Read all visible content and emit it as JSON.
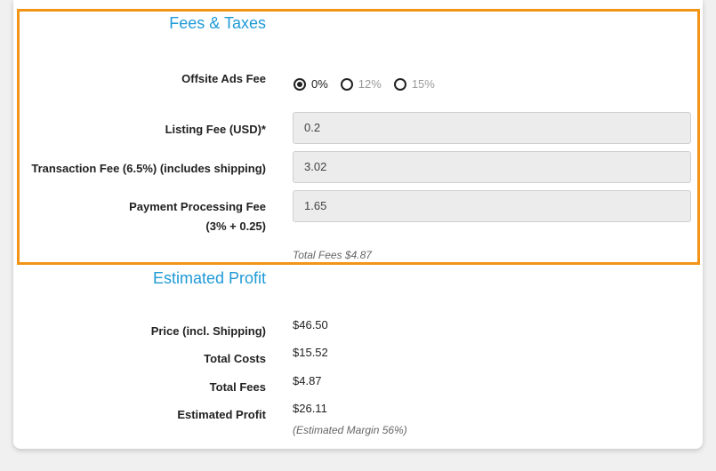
{
  "fees_section": {
    "title": "Fees & Taxes",
    "offsite_ads": {
      "label": "Offsite Ads Fee",
      "options": [
        {
          "label": "0%",
          "selected": true
        },
        {
          "label": "12%",
          "selected": false
        },
        {
          "label": "15%",
          "selected": false
        }
      ]
    },
    "listing_fee": {
      "label": "Listing Fee (USD)*",
      "value": "0.2"
    },
    "transaction_fee": {
      "label": "Transaction Fee (6.5%) (includes shipping)",
      "value": "3.02"
    },
    "payment_processing_fee": {
      "label_line1": "Payment Processing Fee",
      "label_line2": "(3% + 0.25)",
      "value": "1.65"
    },
    "total_fees_note": "Total Fees $4.87"
  },
  "profit_section": {
    "title": "Estimated Profit",
    "rows": [
      {
        "label": "Price (incl. Shipping)",
        "value": "$46.50"
      },
      {
        "label": "Total Costs",
        "value": "$15.52"
      },
      {
        "label": "Total Fees",
        "value": "$4.87"
      },
      {
        "label": "Estimated Profit",
        "value": "$26.11"
      }
    ],
    "margin_note": "(Estimated Margin 56%)"
  },
  "colors": {
    "accent": "#1f9ad6",
    "highlight_border": "#f29418"
  }
}
